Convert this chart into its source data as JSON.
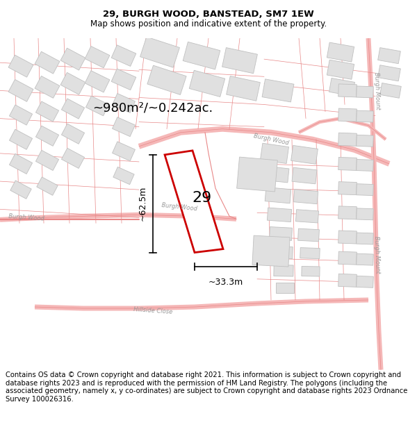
{
  "title": "29, BURGH WOOD, BANSTEAD, SM7 1EW",
  "subtitle": "Map shows position and indicative extent of the property.",
  "footer": "Contains OS data © Crown copyright and database right 2021. This information is subject to Crown copyright and database rights 2023 and is reproduced with the permission of HM Land Registry. The polygons (including the associated geometry, namely x, y co-ordinates) are subject to Crown copyright and database rights 2023 Ordnance Survey 100026316.",
  "area_label": "~980m²/~0.242ac.",
  "height_label": "~62.5m",
  "width_label": "~33.3m",
  "number_label": "29",
  "footer_fontsize": 7.2,
  "title_fontsize": 9.5,
  "subtitle_fontsize": 8.5,
  "map_bg": "#f9f9f9",
  "road_color": "#f5b8b8",
  "road_line_color": "#e88888",
  "building_fill": "#e0e0e0",
  "building_edge": "#c0c0c0",
  "plot_color": "#cc0000",
  "label_color": "#999999"
}
